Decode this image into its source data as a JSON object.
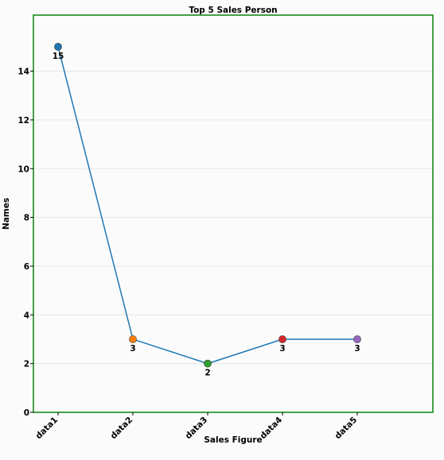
{
  "chart_data": {
    "type": "line",
    "title": "Top 5 Sales Person",
    "xlabel": "Sales Figure",
    "ylabel": "Names",
    "categories": [
      "data1",
      "data2",
      "data3",
      "data4",
      "data5"
    ],
    "values": [
      15,
      3,
      2,
      3,
      3
    ],
    "point_colors": [
      "#1f77b4",
      "#ff7f0e",
      "#2ca02c",
      "#d62728",
      "#9467bd"
    ],
    "line_color": "#1f77b4",
    "frame_color": "#1a8a1a",
    "ylim": [
      0,
      16.3
    ],
    "yticks": [
      0,
      2,
      4,
      6,
      8,
      10,
      12,
      14
    ],
    "grid": true,
    "data_labels": true
  }
}
